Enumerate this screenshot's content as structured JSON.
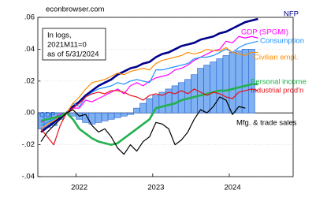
{
  "chart_data": {
    "type": "line",
    "source": "econbrowser.com",
    "annotation": [
      "In logs,",
      "2021M11=0",
      "as of 5/31/2024"
    ],
    "categories": [
      null,
      null,
      null,
      null,
      null,
      null,
      "2022",
      null,
      null,
      null,
      null,
      null,
      null,
      null,
      null,
      null,
      null,
      null,
      "2023",
      null,
      null,
      null,
      null,
      null,
      null,
      null,
      null,
      null,
      null,
      null,
      "2024",
      null,
      null,
      null,
      null,
      null,
      null,
      null,
      null,
      null
    ],
    "ylim": [
      -0.04,
      0.06
    ],
    "yticks": [
      {
        "value": -0.04,
        "label": "-.04"
      },
      {
        "value": -0.02,
        "label": "-.02"
      },
      {
        "value": 0,
        "label": ".00"
      },
      {
        "value": 0.02,
        "label": ".02"
      },
      {
        "value": 0.04,
        "label": ".04"
      },
      {
        "value": 0.06,
        "label": ".06"
      }
    ],
    "grid": true,
    "series": [
      {
        "name": "GDP",
        "type": "bar",
        "color": "#7eb0f2",
        "values": [
          -0.01,
          -0.009,
          -0.008,
          -0.004,
          0,
          -0.002,
          -0.004,
          -0.006,
          -0.007,
          -0.006,
          -0.005,
          -0.004,
          -0.003,
          -0.002,
          -0.001,
          0.003,
          0.006,
          0.009,
          0.011,
          0.013,
          0.015,
          0.017,
          0.019,
          0.021,
          0.024,
          0.028,
          0.03,
          0.032,
          0.034,
          0.036,
          0.038,
          0.039,
          0.04,
          0.04,
          null,
          null,
          null,
          null,
          null,
          null
        ]
      },
      {
        "name": "NFP",
        "type": "line",
        "color": "#00008b",
        "values": [
          -0.012,
          -0.009,
          -0.006,
          -0.003,
          0,
          0.004,
          0.007,
          0.011,
          0.014,
          0.017,
          0.019,
          0.021,
          0.024,
          0.026,
          0.028,
          0.029,
          0.031,
          0.032,
          0.035,
          0.037,
          0.038,
          0.04,
          0.042,
          0.043,
          0.044,
          0.046,
          0.047,
          0.048,
          0.05,
          0.051,
          0.053,
          0.055,
          0.057,
          0.058,
          0.059,
          null,
          null,
          null,
          null,
          null
        ]
      },
      {
        "name": "GDP (SPGMI)",
        "type": "line",
        "color": "#ff00ff",
        "values": [
          -0.006,
          -0.004,
          -0.003,
          -0.001,
          0,
          0.003,
          0.003,
          0.008,
          0.007,
          0.009,
          0.011,
          0.013,
          0.015,
          0.012,
          0.017,
          0.019,
          0.017,
          0.02,
          0.022,
          0.023,
          0.024,
          0.027,
          0.028,
          0.03,
          0.033,
          0.035,
          0.037,
          0.039,
          0.04,
          0.045,
          0.044,
          0.048,
          0.047,
          0.048,
          0.047,
          null,
          null,
          null,
          null,
          null
        ]
      },
      {
        "name": "Consumption",
        "type": "line",
        "color": "#1e90ff",
        "values": [
          -0.008,
          -0.006,
          -0.004,
          -0.002,
          0,
          0.006,
          0.004,
          0.01,
          0.013,
          0.015,
          0.016,
          0.017,
          0.019,
          0.018,
          0.02,
          0.021,
          0.02,
          0.019,
          0.027,
          0.027,
          0.028,
          0.029,
          0.03,
          0.031,
          0.034,
          0.035,
          0.035,
          0.036,
          0.038,
          0.04,
          0.038,
          0.041,
          0.043,
          0.044,
          0.045,
          null,
          null,
          null,
          null,
          null
        ]
      },
      {
        "name": "Civilian empl.",
        "type": "line",
        "color": "#ff8c00",
        "values": [
          -0.01,
          -0.007,
          -0.005,
          -0.002,
          0,
          0.006,
          0.01,
          0.015,
          0.019,
          0.02,
          0.021,
          0.023,
          0.025,
          0.024,
          0.026,
          0.027,
          0.028,
          0.027,
          0.031,
          0.033,
          0.034,
          0.035,
          0.036,
          0.038,
          0.037,
          0.038,
          0.04,
          0.039,
          0.039,
          0.041,
          0.038,
          0.037,
          0.036,
          0.038,
          0.038,
          null,
          null,
          null,
          null,
          null
        ]
      },
      {
        "name": "Personal income",
        "type": "line",
        "color": "#22b14c",
        "values": [
          -0.005,
          -0.004,
          -0.003,
          -0.002,
          0,
          -0.004,
          -0.01,
          -0.013,
          -0.016,
          -0.018,
          -0.019,
          -0.02,
          -0.019,
          -0.016,
          -0.013,
          -0.01,
          -0.007,
          -0.004,
          0.003,
          0.004,
          0.005,
          0.006,
          0.008,
          0.009,
          0.01,
          0.011,
          0.012,
          0.013,
          0.014,
          0.014,
          0.015,
          0.016,
          0.017,
          0.018,
          0.018,
          null,
          null,
          null,
          null,
          null
        ]
      },
      {
        "name": "Industrial prod'n",
        "type": "line",
        "color": "#e8101a",
        "values": [
          -0.01,
          -0.015,
          -0.02,
          -0.008,
          0,
          0.003,
          0.006,
          0.01,
          0.012,
          0.013,
          0.012,
          0.014,
          0.014,
          0.013,
          0.011,
          0.01,
          0.008,
          0.011,
          0.012,
          0.011,
          0.013,
          0.012,
          0.014,
          0.012,
          0.015,
          0.013,
          0.011,
          0.013,
          0.012,
          0.01,
          0.009,
          0.013,
          0.014,
          0.015,
          0.014,
          null,
          null,
          null,
          null,
          null
        ]
      },
      {
        "name": "Mfg. & trade sales",
        "type": "line",
        "color": "#000000",
        "values": [
          -0.018,
          -0.012,
          -0.008,
          -0.004,
          0,
          0.002,
          -0.002,
          -0.001,
          -0.008,
          -0.012,
          -0.01,
          -0.015,
          -0.022,
          -0.026,
          -0.02,
          -0.024,
          -0.018,
          -0.015,
          -0.006,
          -0.007,
          -0.01,
          -0.02,
          -0.017,
          -0.012,
          -0.004,
          0.002,
          0.0,
          0.004,
          0.01,
          0.008,
          -0.001,
          0.004,
          0.003,
          null,
          null,
          null,
          null,
          null,
          null,
          null
        ]
      }
    ]
  }
}
